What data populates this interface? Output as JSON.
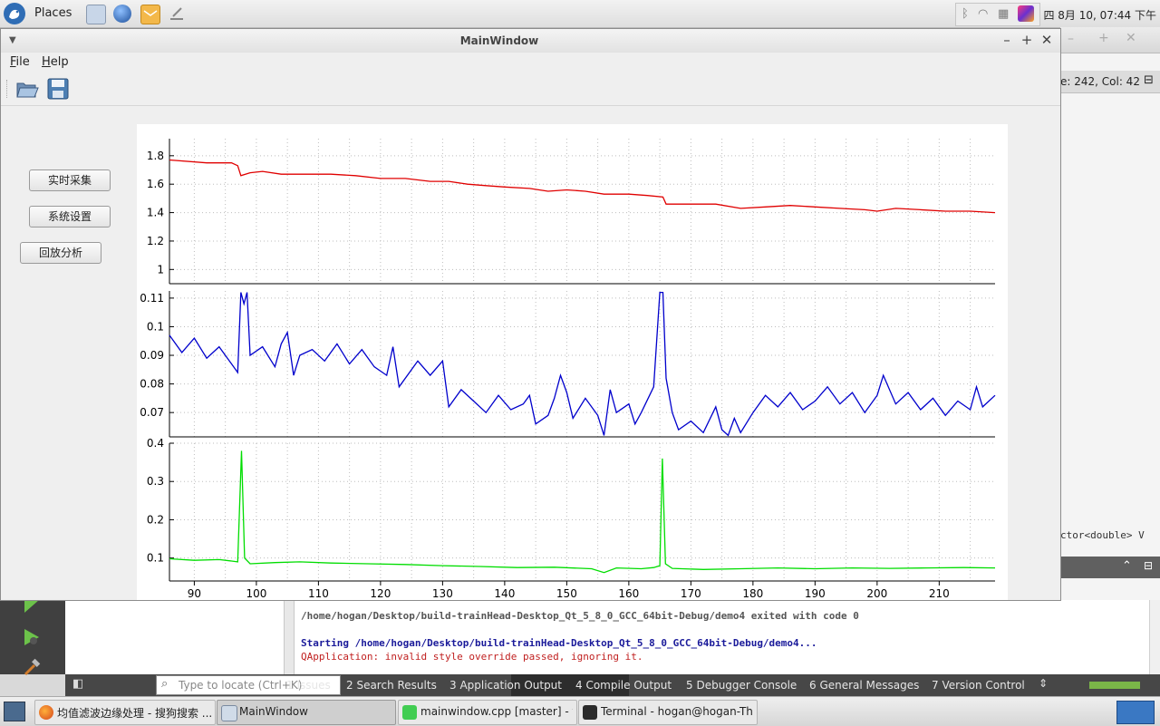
{
  "top_panel": {
    "places_label": "Places",
    "clock": "四 8月 10, 07:44 下午"
  },
  "main_window": {
    "title": "MainWindow",
    "menu": [
      {
        "label": "File",
        "mnemonic": "F",
        "rest": "ile"
      },
      {
        "label": "Help",
        "mnemonic": "H",
        "rest": "elp"
      }
    ],
    "side_buttons": [
      "实时采集",
      "系统设置",
      "回放分析"
    ]
  },
  "chart_data": [
    {
      "type": "line",
      "color": "#e00000",
      "ylim": [
        0.9,
        1.92
      ],
      "yticks": [
        "1.8",
        "1.6",
        "1.4",
        "1.2",
        "1"
      ],
      "x_range": [
        86,
        219
      ],
      "series": [
        {
          "points": [
            [
              86,
              1.77
            ],
            [
              92,
              1.75
            ],
            [
              96,
              1.75
            ],
            [
              97,
              1.73
            ],
            [
              97.5,
              1.66
            ],
            [
              99,
              1.68
            ],
            [
              101,
              1.69
            ],
            [
              104,
              1.67
            ],
            [
              108,
              1.67
            ],
            [
              112,
              1.67
            ],
            [
              116,
              1.66
            ],
            [
              120,
              1.64
            ],
            [
              124,
              1.64
            ],
            [
              128,
              1.62
            ],
            [
              131,
              1.62
            ],
            [
              134,
              1.6
            ],
            [
              137,
              1.59
            ],
            [
              140,
              1.58
            ],
            [
              144,
              1.57
            ],
            [
              147,
              1.55
            ],
            [
              150,
              1.56
            ],
            [
              153,
              1.55
            ],
            [
              156,
              1.53
            ],
            [
              160,
              1.53
            ],
            [
              163,
              1.52
            ],
            [
              165.5,
              1.51
            ],
            [
              166,
              1.46
            ],
            [
              170,
              1.46
            ],
            [
              174,
              1.46
            ],
            [
              178,
              1.43
            ],
            [
              182,
              1.44
            ],
            [
              186,
              1.45
            ],
            [
              190,
              1.44
            ],
            [
              194,
              1.43
            ],
            [
              198,
              1.42
            ],
            [
              200,
              1.41
            ],
            [
              203,
              1.43
            ],
            [
              207,
              1.42
            ],
            [
              211,
              1.41
            ],
            [
              215,
              1.41
            ],
            [
              219,
              1.4
            ]
          ]
        }
      ]
    },
    {
      "type": "line",
      "color": "#0000cc",
      "ylim": [
        0.0615,
        0.1125
      ],
      "yticks": [
        "0.11",
        "0.1",
        "0.09",
        "0.08",
        "0.07"
      ],
      "x_range": [
        86,
        219
      ],
      "series": [
        {
          "points": [
            [
              86,
              0.097
            ],
            [
              88,
              0.091
            ],
            [
              90,
              0.096
            ],
            [
              92,
              0.089
            ],
            [
              94,
              0.093
            ],
            [
              95,
              0.09
            ],
            [
              96,
              0.087
            ],
            [
              97,
              0.084
            ],
            [
              97.5,
              0.112
            ],
            [
              98,
              0.108
            ],
            [
              98.5,
              0.112
            ],
            [
              99,
              0.09
            ],
            [
              101,
              0.093
            ],
            [
              103,
              0.086
            ],
            [
              104,
              0.094
            ],
            [
              105,
              0.098
            ],
            [
              106,
              0.083
            ],
            [
              107,
              0.09
            ],
            [
              109,
              0.092
            ],
            [
              111,
              0.088
            ],
            [
              113,
              0.094
            ],
            [
              115,
              0.087
            ],
            [
              117,
              0.092
            ],
            [
              119,
              0.086
            ],
            [
              121,
              0.083
            ],
            [
              122,
              0.093
            ],
            [
              123,
              0.079
            ],
            [
              126,
              0.088
            ],
            [
              128,
              0.083
            ],
            [
              130,
              0.088
            ],
            [
              131,
              0.072
            ],
            [
              133,
              0.078
            ],
            [
              135,
              0.074
            ],
            [
              137,
              0.07
            ],
            [
              139,
              0.076
            ],
            [
              141,
              0.071
            ],
            [
              143,
              0.073
            ],
            [
              144,
              0.076
            ],
            [
              145,
              0.066
            ],
            [
              147,
              0.069
            ],
            [
              148,
              0.075
            ],
            [
              149,
              0.083
            ],
            [
              150,
              0.077
            ],
            [
              151,
              0.068
            ],
            [
              153,
              0.075
            ],
            [
              155,
              0.069
            ],
            [
              156,
              0.062
            ],
            [
              157,
              0.078
            ],
            [
              158,
              0.07
            ],
            [
              160,
              0.073
            ],
            [
              161,
              0.066
            ],
            [
              162,
              0.07
            ],
            [
              164,
              0.079
            ],
            [
              165,
              0.112
            ],
            [
              165.5,
              0.112
            ],
            [
              166,
              0.082
            ],
            [
              167,
              0.07
            ],
            [
              168,
              0.064
            ],
            [
              170,
              0.067
            ],
            [
              172,
              0.063
            ],
            [
              174,
              0.072
            ],
            [
              175,
              0.064
            ],
            [
              176,
              0.062
            ],
            [
              177,
              0.068
            ],
            [
              178,
              0.063
            ],
            [
              180,
              0.07
            ],
            [
              182,
              0.076
            ],
            [
              184,
              0.072
            ],
            [
              186,
              0.077
            ],
            [
              188,
              0.071
            ],
            [
              190,
              0.074
            ],
            [
              192,
              0.079
            ],
            [
              194,
              0.073
            ],
            [
              196,
              0.077
            ],
            [
              198,
              0.07
            ],
            [
              200,
              0.076
            ],
            [
              201,
              0.083
            ],
            [
              203,
              0.073
            ],
            [
              205,
              0.077
            ],
            [
              207,
              0.071
            ],
            [
              209,
              0.075
            ],
            [
              211,
              0.069
            ],
            [
              213,
              0.074
            ],
            [
              215,
              0.071
            ],
            [
              216,
              0.079
            ],
            [
              217,
              0.072
            ],
            [
              219,
              0.076
            ]
          ]
        }
      ]
    },
    {
      "type": "line",
      "color": "#00dd00",
      "ylim": [
        0.04,
        0.4
      ],
      "yticks": [
        "0.4",
        "0.3",
        "0.2",
        "0.1"
      ],
      "xticks": [
        "90",
        "100",
        "110",
        "120",
        "130",
        "140",
        "150",
        "160",
        "170",
        "180",
        "190",
        "200",
        "210"
      ],
      "x_range": [
        86,
        219
      ],
      "series": [
        {
          "points": [
            [
              86,
              0.098
            ],
            [
              90,
              0.094
            ],
            [
              94,
              0.096
            ],
            [
              96,
              0.092
            ],
            [
              97,
              0.09
            ],
            [
              97.6,
              0.38
            ],
            [
              98.1,
              0.1
            ],
            [
              99,
              0.085
            ],
            [
              103,
              0.088
            ],
            [
              107,
              0.09
            ],
            [
              112,
              0.087
            ],
            [
              118,
              0.085
            ],
            [
              124,
              0.083
            ],
            [
              130,
              0.08
            ],
            [
              136,
              0.078
            ],
            [
              142,
              0.075
            ],
            [
              148,
              0.076
            ],
            [
              154,
              0.072
            ],
            [
              156,
              0.062
            ],
            [
              158,
              0.074
            ],
            [
              162,
              0.072
            ],
            [
              164,
              0.075
            ],
            [
              165,
              0.08
            ],
            [
              165.4,
              0.36
            ],
            [
              165.9,
              0.085
            ],
            [
              167,
              0.073
            ],
            [
              172,
              0.07
            ],
            [
              178,
              0.072
            ],
            [
              184,
              0.074
            ],
            [
              190,
              0.072
            ],
            [
              196,
              0.074
            ],
            [
              202,
              0.073
            ],
            [
              208,
              0.074
            ],
            [
              214,
              0.075
            ],
            [
              219,
              0.074
            ]
          ]
        }
      ]
    }
  ],
  "background_editor": {
    "line_col": "e: 242, Col: 42",
    "code_snippet": "ctor<double> V",
    "output_lines": [
      {
        "text": "/home/hogan/Desktop/build-trainHead-Desktop_Qt_5_8_0_GCC_64bit-Debug/demo4 exited with code 0",
        "color": "#555555",
        "bold": true
      },
      {
        "text": "",
        "color": "#000000",
        "bold": false
      },
      {
        "text": "Starting /home/hogan/Desktop/build-trainHead-Desktop_Qt_5_8_0_GCC_64bit-Debug/demo4...",
        "color": "#1a1a9a",
        "bold": true
      },
      {
        "text": "QApplication: invalid style override passed, ignoring it.",
        "color": "#c02020",
        "bold": false
      }
    ],
    "locator_placeholder": "Type to locate (Ctrl+K)",
    "panes": [
      "1  Issues",
      "2  Search Results",
      "3  Application Output",
      "4  Compile Output",
      "5  Debugger Console",
      "6  General Messages",
      "7  Version Control"
    ]
  },
  "taskbar": {
    "tasks": [
      "均值滤波边缘处理 - 搜狗搜索 ...",
      "MainWindow",
      "mainwindow.cpp [master] - t...",
      "Terminal - hogan@hogan-Th..."
    ]
  }
}
